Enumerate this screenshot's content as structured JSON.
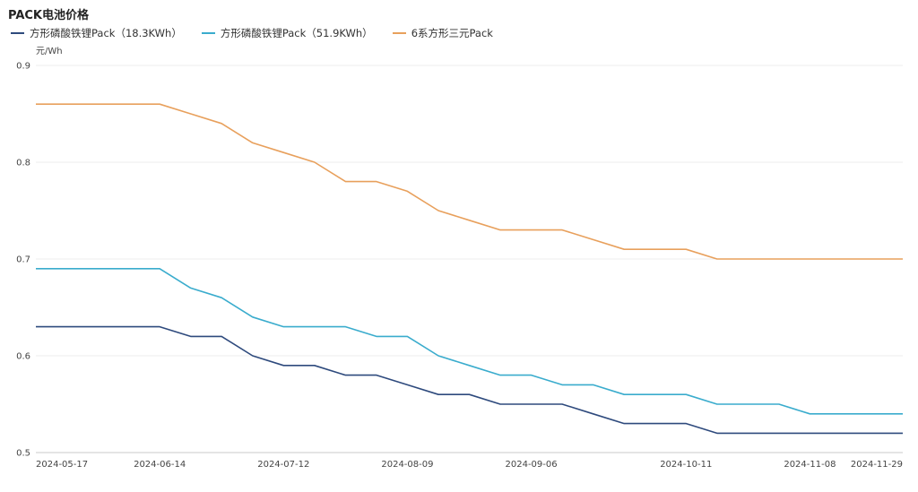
{
  "chart_data": {
    "type": "line",
    "title": "PACK电池价格",
    "ylabel": "元/Wh",
    "ylim": [
      0.5,
      0.9
    ],
    "yticks": [
      "0.5",
      "0.6",
      "0.7",
      "0.8",
      "0.9"
    ],
    "grid": true,
    "legend_position": "top-left",
    "x_ticks": [
      "2024-05-17",
      "2024-06-14",
      "2024-07-12",
      "2024-08-09",
      "2024-09-06",
      "2024-10-11",
      "2024-11-08",
      "2024-11-29"
    ],
    "x": [
      "2024-05-17",
      "2024-05-24",
      "2024-05-31",
      "2024-06-07",
      "2024-06-14",
      "2024-06-21",
      "2024-06-28",
      "2024-07-05",
      "2024-07-12",
      "2024-07-19",
      "2024-07-26",
      "2024-08-02",
      "2024-08-09",
      "2024-08-16",
      "2024-08-23",
      "2024-08-30",
      "2024-09-06",
      "2024-09-13",
      "2024-09-20",
      "2024-09-27",
      "2024-10-11",
      "2024-10-18",
      "2024-10-25",
      "2024-11-01",
      "2024-11-08",
      "2024-11-15",
      "2024-11-22",
      "2024-11-29"
    ],
    "series": [
      {
        "name": "方形磷酸铁锂Pack（18.3KWh）",
        "color": "#2e4a7d",
        "values": [
          0.63,
          0.63,
          0.63,
          0.63,
          0.63,
          0.62,
          0.62,
          0.6,
          0.59,
          0.59,
          0.58,
          0.58,
          0.57,
          0.56,
          0.56,
          0.55,
          0.55,
          0.55,
          0.54,
          0.53,
          0.53,
          0.52,
          0.52,
          0.52,
          0.52,
          0.52,
          0.52,
          0.52
        ]
      },
      {
        "name": "方形磷酸铁锂Pack（51.9KWh）",
        "color": "#3aaccd",
        "values": [
          0.69,
          0.69,
          0.69,
          0.69,
          0.69,
          0.67,
          0.66,
          0.64,
          0.63,
          0.63,
          0.63,
          0.62,
          0.62,
          0.6,
          0.59,
          0.58,
          0.58,
          0.57,
          0.57,
          0.56,
          0.56,
          0.55,
          0.55,
          0.55,
          0.54,
          0.54,
          0.54,
          0.54
        ]
      },
      {
        "name": "6系方形三元Pack",
        "color": "#e8a05c",
        "values": [
          0.86,
          0.86,
          0.86,
          0.86,
          0.86,
          0.85,
          0.84,
          0.82,
          0.81,
          0.8,
          0.78,
          0.78,
          0.77,
          0.75,
          0.74,
          0.73,
          0.73,
          0.73,
          0.72,
          0.71,
          0.71,
          0.7,
          0.7,
          0.7,
          0.7,
          0.7,
          0.7,
          0.7
        ]
      }
    ]
  }
}
